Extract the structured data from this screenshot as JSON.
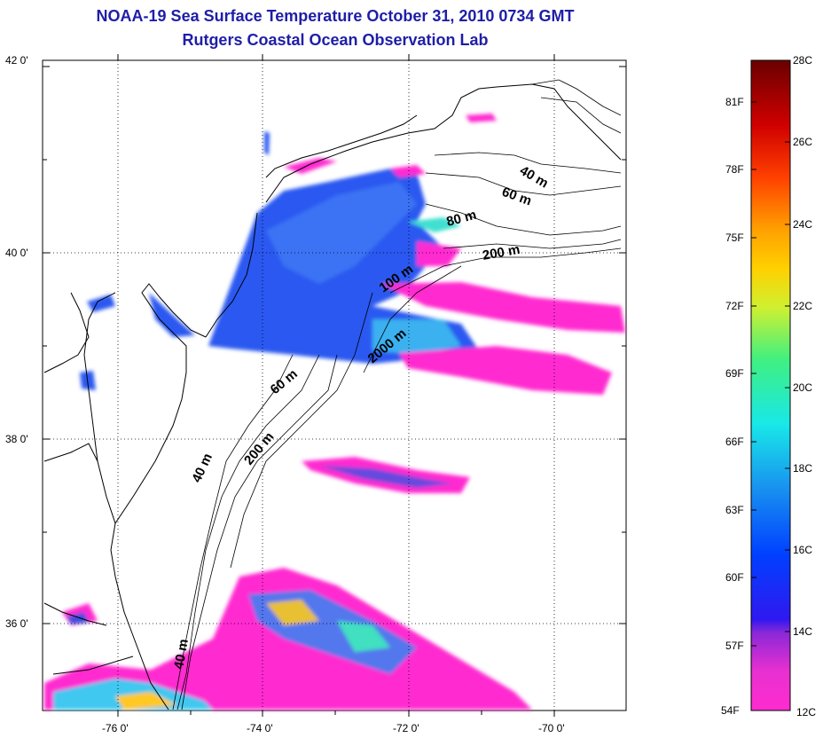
{
  "title": {
    "line1": "NOAA-19 Sea Surface Temperature October 31, 2010 0734 GMT",
    "line2": "Rutgers Coastal Ocean Observation Lab"
  },
  "map": {
    "lat_labels": [
      "42 0'",
      "40 0'",
      "38 0'",
      "36 0'"
    ],
    "lon_labels": [
      "-76 0'",
      "-74 0'",
      "-72 0'",
      "-70 0'"
    ],
    "contour_labels": [
      "40 m",
      "60 m",
      "80 m",
      "200 m",
      "100 m",
      "2000 m",
      "60 m",
      "200 m",
      "40 m",
      "40 m"
    ]
  },
  "colorbar": {
    "fahrenheit_labels": [
      "81F",
      "78F",
      "75F",
      "72F",
      "69F",
      "66F",
      "63F",
      "60F",
      "57F",
      "54F"
    ],
    "celsius_labels": [
      "28C",
      "26C",
      "24C",
      "22C",
      "20C",
      "18C",
      "16C",
      "14C",
      "12C"
    ],
    "colors": [
      "#ff2bd0",
      "#b030d8",
      "#3a1ae8",
      "#0030ff",
      "#1890f0",
      "#18e8e8",
      "#38f088",
      "#e8f030",
      "#ffa000",
      "#ff3000",
      "#d00000",
      "#7a0000"
    ]
  }
}
